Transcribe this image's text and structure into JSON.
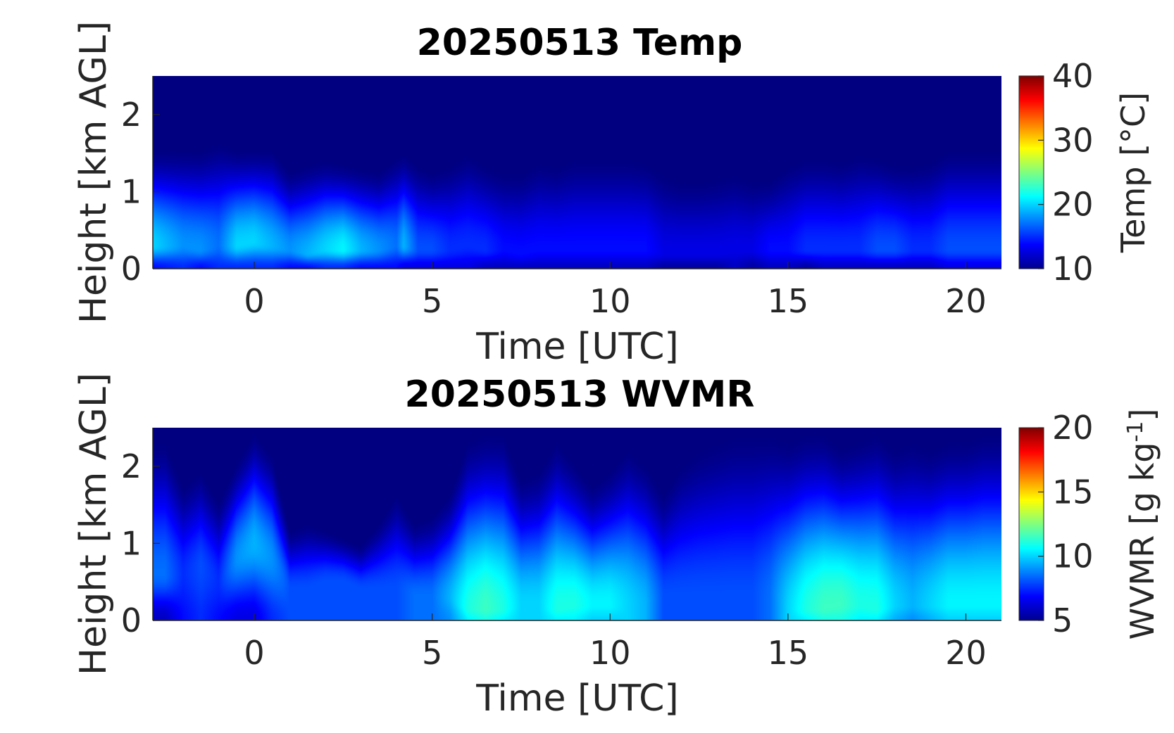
{
  "chart_data": [
    {
      "type": "heatmap",
      "title": "20250513 Temp",
      "xlabel": "Time [UTC]",
      "ylabel": "Height [km AGL]",
      "xlim": [
        -2.85,
        21
      ],
      "ylim": [
        0,
        2.5
      ],
      "xticks": [
        0,
        5,
        10,
        15,
        20
      ],
      "yticks": [
        0,
        1,
        2
      ],
      "colorbar": {
        "label": "Temp [°C]",
        "range": [
          10,
          40
        ],
        "ticks": [
          10,
          20,
          30,
          40
        ],
        "colormap": "jet"
      },
      "profiles": {
        "time": [
          -2.85,
          -2.0,
          -1.5,
          -1.0,
          -0.5,
          0.0,
          0.5,
          1.0,
          1.5,
          2.0,
          2.5,
          3.0,
          3.5,
          4.0,
          4.2,
          4.6,
          5.0,
          5.5,
          6.0,
          6.5,
          7.0,
          7.5,
          8.0,
          8.5,
          9.0,
          9.5,
          10.0,
          10.5,
          11.0,
          11.5,
          12.0,
          12.5,
          13.0,
          13.5,
          14.0,
          14.5,
          15.0,
          15.5,
          16.0,
          16.5,
          17.0,
          17.5,
          18.0,
          18.5,
          19.0,
          19.5,
          20.0,
          20.5,
          21.0
        ],
        "surface_value": [
          14,
          15,
          14,
          15,
          15,
          15,
          15,
          14,
          14,
          15,
          15,
          14,
          14,
          14,
          13,
          13,
          13,
          13,
          13,
          12,
          12,
          12,
          12,
          12,
          12,
          12,
          12,
          12,
          12,
          11,
          11,
          11,
          11,
          12,
          11,
          12,
          12,
          11,
          12,
          12,
          12,
          12,
          12,
          12,
          12,
          13,
          13,
          13,
          13
        ],
        "peak_height_km": [
          0.3,
          0.3,
          0.25,
          0.3,
          0.3,
          0.35,
          0.3,
          0.25,
          0.2,
          0.25,
          0.25,
          0.25,
          0.25,
          0.3,
          0.3,
          0.25,
          0.25,
          0.25,
          0.3,
          0.25,
          0.25,
          0.2,
          0.25,
          0.25,
          0.25,
          0.25,
          0.25,
          0.25,
          0.25,
          0.2,
          0.2,
          0.2,
          0.2,
          0.25,
          0.25,
          0.25,
          0.25,
          0.25,
          0.25,
          0.25,
          0.25,
          0.25,
          0.25,
          0.25,
          0.25,
          0.25,
          0.25,
          0.25,
          0.25
        ],
        "peak_value": [
          20,
          18,
          18,
          17,
          20,
          20,
          19,
          18,
          19,
          20,
          21,
          19,
          18,
          17,
          19,
          16,
          16,
          15,
          15,
          15,
          14,
          14,
          14,
          14,
          14,
          14,
          14,
          14,
          14,
          13,
          13,
          13,
          13,
          13,
          13,
          14,
          14,
          15,
          15,
          15,
          15,
          16,
          16,
          15,
          15,
          16,
          16,
          16,
          16
        ],
        "top_km": [
          1.6,
          1.6,
          1.6,
          1.7,
          1.6,
          1.6,
          1.6,
          1.3,
          1.4,
          1.45,
          1.4,
          1.35,
          1.3,
          1.5,
          1.55,
          1.4,
          1.3,
          1.4,
          1.55,
          1.4,
          1.3,
          1.3,
          1.45,
          1.4,
          1.5,
          1.5,
          1.5,
          1.5,
          1.45,
          1.3,
          1.2,
          1.2,
          1.25,
          1.3,
          1.2,
          1.2,
          1.4,
          1.5,
          1.5,
          1.45,
          1.55,
          1.5,
          1.4,
          1.4,
          1.45,
          1.6,
          1.6,
          1.6,
          1.6
        ],
        "background_value": 10
      }
    },
    {
      "type": "heatmap",
      "title": "20250513 WVMR",
      "xlabel": "Time [UTC]",
      "ylabel": "Height [km AGL]",
      "xlim": [
        -2.85,
        21
      ],
      "ylim": [
        0,
        2.5
      ],
      "xticks": [
        0,
        5,
        10,
        15,
        20
      ],
      "yticks": [
        0,
        1,
        2
      ],
      "colorbar": {
        "label": "WVMR [g kg",
        "label_sup": "-1",
        "label_end": "]",
        "range": [
          5,
          20
        ],
        "ticks": [
          5,
          10,
          15,
          20
        ],
        "colormap": "jet"
      },
      "profiles": {
        "time": [
          -2.85,
          -2.5,
          -2.0,
          -1.5,
          -1.0,
          -0.5,
          0.0,
          0.5,
          1.0,
          1.5,
          2.0,
          2.5,
          3.0,
          3.5,
          4.0,
          4.5,
          5.0,
          5.5,
          6.0,
          6.5,
          7.0,
          7.5,
          8.0,
          8.5,
          9.0,
          9.5,
          10.0,
          10.5,
          11.0,
          11.5,
          12.0,
          12.5,
          13.0,
          13.5,
          14.0,
          14.5,
          15.0,
          15.5,
          16.0,
          16.5,
          17.0,
          17.5,
          18.0,
          18.5,
          19.0,
          19.5,
          20.0,
          20.5,
          21.0
        ],
        "surface_value": [
          6,
          6,
          7,
          7.5,
          7,
          6.5,
          6.5,
          7.5,
          8,
          8,
          8,
          8,
          8,
          8,
          8,
          8.5,
          8.5,
          9,
          10.5,
          11,
          10.5,
          10,
          10,
          10.5,
          10.5,
          10,
          10,
          10,
          9.5,
          8,
          8,
          8,
          8,
          8,
          8,
          8.5,
          10,
          10.5,
          11,
          11,
          10.5,
          10.5,
          9.5,
          9,
          9.5,
          10,
          10,
          10,
          10
        ],
        "peak_height_km": [
          0.6,
          0.6,
          0.6,
          0.7,
          0.5,
          0.8,
          1.0,
          0.8,
          0.4,
          0.4,
          0.5,
          0.5,
          0.4,
          0.4,
          0.4,
          0.3,
          0.3,
          0.3,
          0.15,
          0.15,
          0.15,
          0.2,
          0.2,
          0.15,
          0.2,
          0.2,
          0.2,
          0.2,
          0.2,
          0.3,
          0.3,
          0.3,
          0.3,
          0.3,
          0.3,
          0.3,
          0.15,
          0.15,
          0.15,
          0.2,
          0.2,
          0.15,
          0.2,
          0.2,
          0.2,
          0.2,
          0.2,
          0.2,
          0.2
        ],
        "peak_value": [
          8.5,
          8.5,
          7.5,
          8,
          7.5,
          9,
          9.5,
          9,
          8,
          8,
          8,
          8,
          8,
          8,
          8,
          8.5,
          8.5,
          9.5,
          11,
          11.5,
          11,
          10,
          10,
          11,
          11,
          10.5,
          10.5,
          10,
          9.5,
          8,
          8,
          8,
          8,
          8,
          8,
          8.5,
          10,
          11,
          11.5,
          11.5,
          11,
          11,
          10,
          9.5,
          10,
          10.5,
          10.5,
          10.5,
          10.5
        ],
        "top_km": [
          2.4,
          2.4,
          1.8,
          2.0,
          1.6,
          2.1,
          2.5,
          2.2,
          1.2,
          1.3,
          1.2,
          1.1,
          1.0,
          1.3,
          1.7,
          1.3,
          1.4,
          1.7,
          2.4,
          2.5,
          2.5,
          1.9,
          2.0,
          2.4,
          2.1,
          1.8,
          2.0,
          2.3,
          2.1,
          1.7,
          2.1,
          2.3,
          2.4,
          2.5,
          2.5,
          2.5,
          2.4,
          2.5,
          2.5,
          2.3,
          2.4,
          2.5,
          2.3,
          2.4,
          2.3,
          2.4,
          2.4,
          2.5,
          2.5
        ],
        "background_value": 5
      }
    }
  ]
}
